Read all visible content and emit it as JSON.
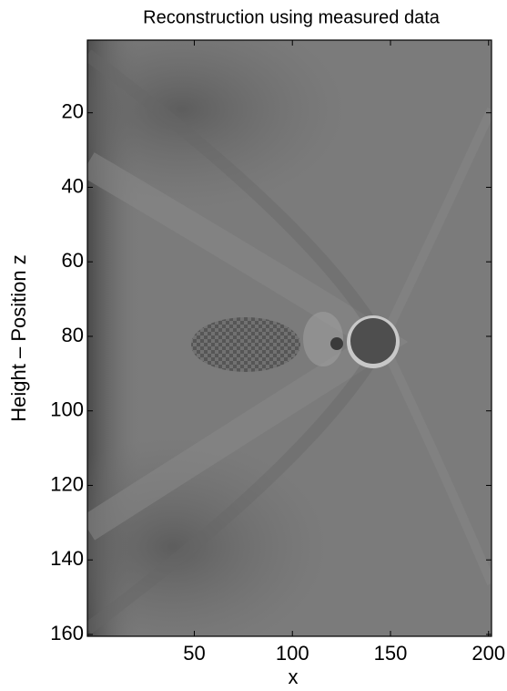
{
  "chart_data": {
    "type": "image",
    "title": "Reconstruction using measured data",
    "x_label": "x",
    "y_label": "Height – Position z",
    "colormap": "gray",
    "xlim": [
      -4.5,
      201.5
    ],
    "xticks": [
      50,
      100,
      150,
      200
    ],
    "ylim": [
      0.5,
      160.5
    ],
    "yticks": [
      20,
      40,
      60,
      80,
      100,
      120,
      140,
      160
    ],
    "y_reversed": true
  }
}
